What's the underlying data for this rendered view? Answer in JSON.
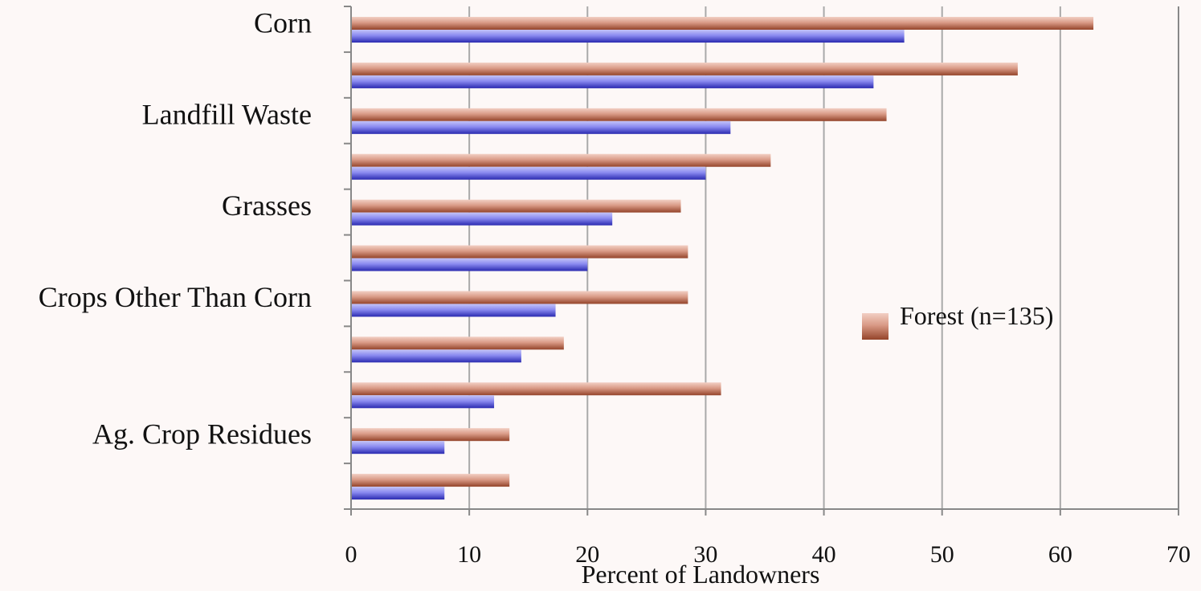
{
  "chart_data": {
    "type": "bar",
    "orientation": "horizontal",
    "categories": [
      "Corn",
      "",
      "Landfill Waste",
      "",
      "Grasses",
      "",
      "Crops Other Than Corn",
      "",
      "",
      "Ag. Crop Residues",
      ""
    ],
    "series": [
      {
        "name": "Forest (n=135)",
        "color": "#b8705a",
        "values": [
          62.8,
          56.4,
          45.3,
          35.5,
          27.9,
          28.5,
          28.5,
          18.0,
          31.3,
          13.4,
          13.4
        ]
      },
      {
        "color": "#5a5ad0",
        "values": [
          46.8,
          44.2,
          32.1,
          30.0,
          22.1,
          20.0,
          17.3,
          14.4,
          12.1,
          7.9,
          7.9
        ]
      }
    ],
    "xlabel": "Percent of Landowners",
    "ylabel": "",
    "xlim": [
      0,
      70
    ],
    "x_ticks": [
      "0",
      "10",
      "20",
      "30",
      "40",
      "50",
      "60",
      "70"
    ],
    "grid": "vertical",
    "legend": "right"
  }
}
